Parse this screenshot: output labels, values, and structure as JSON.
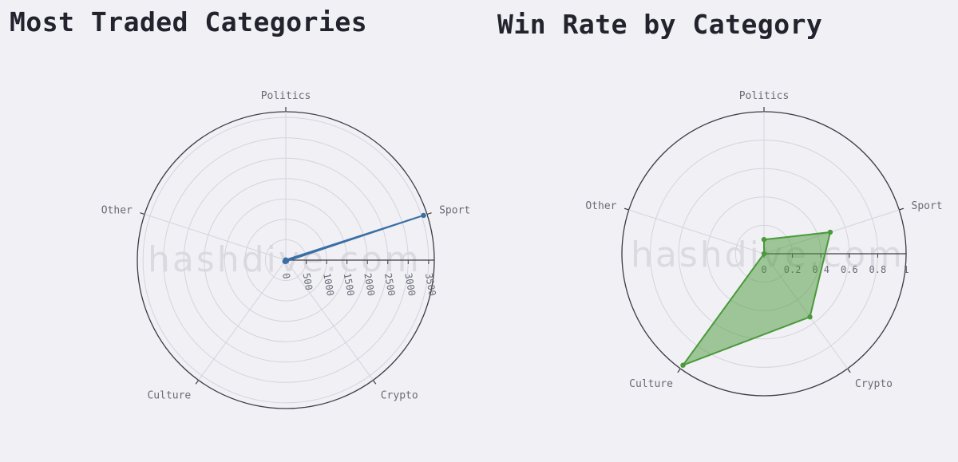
{
  "watermark": "hashdive.com",
  "chart_data": [
    {
      "type": "radar",
      "title": "Most Traded Categories",
      "categories": [
        "Politics",
        "Sport",
        "Crypto",
        "Culture",
        "Other"
      ],
      "series": [
        {
          "values": [
            5,
            3550,
            30,
            40,
            5
          ]
        }
      ],
      "radial_range": [
        0,
        3640
      ],
      "radial_ticks": [
        0,
        500,
        1000,
        1500,
        2000,
        2500,
        3000,
        3500
      ],
      "radial_tick_labels": [
        "0",
        "500",
        "1000",
        "1500",
        "2000",
        "2500",
        "3000",
        "3500"
      ],
      "color": "#3a6ea5",
      "grid": true
    },
    {
      "type": "radar",
      "title": "Win Rate by Category",
      "categories": [
        "Politics",
        "Sport",
        "Crypto",
        "Culture",
        "Other"
      ],
      "series": [
        {
          "values": [
            0.1,
            0.49,
            0.55,
            0.97,
            0.0
          ]
        }
      ],
      "radial_range": [
        0,
        1
      ],
      "radial_ticks": [
        0,
        0.2,
        0.4,
        0.6,
        0.8,
        1
      ],
      "radial_tick_labels": [
        "0",
        "0.2",
        "0.4",
        "0.6",
        "0.8",
        "1"
      ],
      "color": "#4a9a3a",
      "grid": true
    }
  ]
}
